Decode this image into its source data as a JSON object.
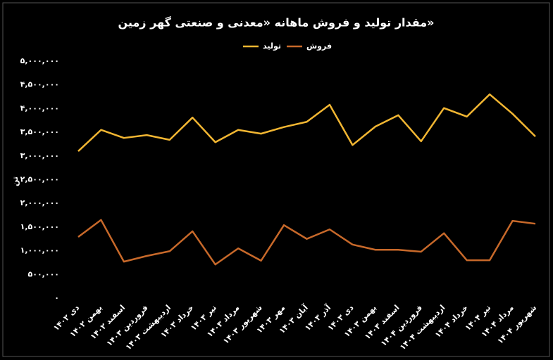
{
  "chart_data": {
    "type": "line",
    "title": "مقدار تولید و فروش ماهانه «معدنی و صنعتی گهر زمین»",
    "y_label": "تن",
    "categories": [
      "دی ۱۴۰۲",
      "بهمن ۱۴۰۲",
      "اسفند ۱۴۰۲",
      "فروردین ۱۴۰۳",
      "اردیبهشت ۱۴۰۳",
      "خرداد ۱۴۰۳",
      "تیر ۱۴۰۳",
      "مرداد ۱۴۰۳",
      "شهریور ۱۴۰۳",
      "مهر ۱۴۰۳",
      "آبان ۱۴۰۳",
      "آذر ۱۴۰۳",
      "دی ۱۴۰۳",
      "بهمن ۱۴۰۳",
      "اسفند ۱۴۰۳",
      "فروردین ۱۴۰۴",
      "اردیبهشت ۱۴۰۴",
      "خرداد ۱۴۰۴",
      "تیر ۱۴۰۴",
      "مرداد ۱۴۰۴",
      "شهریور ۱۴۰۴"
    ],
    "series": [
      {
        "name": "تولید",
        "color": "#f2b632",
        "values": [
          3100000,
          3550000,
          3380000,
          3440000,
          3340000,
          3810000,
          3290000,
          3550000,
          3470000,
          3610000,
          3720000,
          4080000,
          3230000,
          3620000,
          3860000,
          3310000,
          4010000,
          3830000,
          4300000,
          3890000,
          3410000
        ]
      },
      {
        "name": "فروش",
        "color": "#c8692a",
        "values": [
          1290000,
          1650000,
          770000,
          890000,
          990000,
          1410000,
          710000,
          1050000,
          790000,
          1540000,
          1250000,
          1450000,
          1130000,
          1020000,
          1020000,
          980000,
          1370000,
          800000,
          800000,
          1630000,
          1570000
        ]
      }
    ],
    "ylim": [
      0,
      5000000
    ],
    "yticks": [
      {
        "value": 0,
        "label": "۰"
      },
      {
        "value": 500000,
        "label": "۵۰۰,۰۰۰"
      },
      {
        "value": 1000000,
        "label": "۱,۰۰۰,۰۰۰"
      },
      {
        "value": 1500000,
        "label": "۱,۵۰۰,۰۰۰"
      },
      {
        "value": 2000000,
        "label": "۲,۰۰۰,۰۰۰"
      },
      {
        "value": 2500000,
        "label": "۲,۵۰۰,۰۰۰"
      },
      {
        "value": 3000000,
        "label": "۳,۰۰۰,۰۰۰"
      },
      {
        "value": 3500000,
        "label": "۳,۵۰۰,۰۰۰"
      },
      {
        "value": 4000000,
        "label": "۴,۰۰۰,۰۰۰"
      },
      {
        "value": 4500000,
        "label": "۴,۵۰۰,۰۰۰"
      },
      {
        "value": 5000000,
        "label": "۵,۰۰۰,۰۰۰"
      }
    ]
  }
}
